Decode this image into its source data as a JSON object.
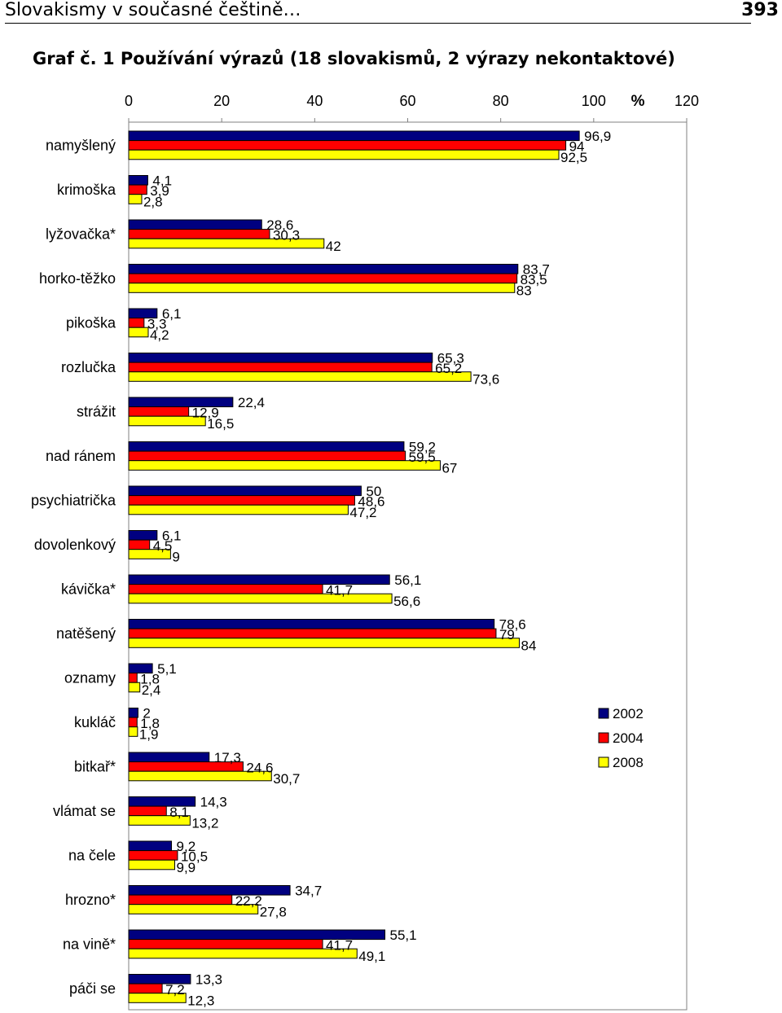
{
  "header": {
    "running_title": "Slovakismy v současné češtině…",
    "page_number": "393"
  },
  "figure": {
    "caption": "Graf č. 1 Používání výrazů (18 slovakismů, 2 výrazy nekontaktové)"
  },
  "chart_data": {
    "type": "bar",
    "orientation": "horizontal",
    "title": "Graf č. 1 Používání výrazů (18 slovakismů, 2 výrazy nekontaktové)",
    "x_axis": {
      "position": "top",
      "ticks": [
        "0",
        "20",
        "40",
        "60",
        "80",
        "100",
        "120"
      ],
      "unit_label": "%",
      "xlim": [
        0,
        120
      ]
    },
    "grid": false,
    "legend_position": "right",
    "categories": [
      "namyšlený",
      "krimoška",
      "lyžovačka*",
      "horko-těžko",
      "pikoška",
      "rozlučka",
      "strážit",
      "nad ránem",
      "psychiatrička",
      "dovolenkový",
      "kávička*",
      "natěšený",
      "oznamy",
      "kukláč",
      "bitkař*",
      "vlámat se",
      "na čele",
      "hrozno*",
      "na vině*",
      "páči se"
    ],
    "series": [
      {
        "name": "2002",
        "color": "#000080",
        "values": [
          96.9,
          4.1,
          28.6,
          83.7,
          6.1,
          65.3,
          22.4,
          59.2,
          50,
          6.1,
          56.1,
          78.6,
          5.1,
          2,
          17.3,
          14.3,
          9.2,
          34.7,
          55.1,
          13.3
        ],
        "labels": [
          "96,9",
          "4,1",
          "28,6",
          "83,7",
          "6,1",
          "65,3",
          "22,4",
          "59,2",
          "50",
          "6,1",
          "56,1",
          "78,6",
          "5,1",
          "2",
          "17,3",
          "14,3",
          "9,2",
          "34,7",
          "55,1",
          "13,3"
        ]
      },
      {
        "name": "2004",
        "color": "#ff0000",
        "values": [
          94,
          3.9,
          30.3,
          83.5,
          3.3,
          65.2,
          12.9,
          59.5,
          48.6,
          4.5,
          41.7,
          79,
          1.8,
          1.8,
          24.6,
          8.1,
          10.5,
          22.2,
          41.7,
          7.2
        ],
        "labels": [
          "94",
          "3,9",
          "30,3",
          "83,5",
          "3,3",
          "65,2",
          "12,9",
          "59,5",
          "48,6",
          "4,5",
          "41,7",
          "79",
          "1,8",
          "1,8",
          "24,6",
          "8,1",
          "10,5",
          "22,2",
          "41,7",
          "7,2"
        ]
      },
      {
        "name": "2008",
        "color": "#ffff00",
        "values": [
          92.5,
          2.8,
          42,
          83,
          4.2,
          73.6,
          16.5,
          67,
          47.2,
          9,
          56.6,
          84,
          2.4,
          1.9,
          30.7,
          13.2,
          9.9,
          27.8,
          49.1,
          12.3
        ],
        "labels": [
          "92,5",
          "2,8",
          "42",
          "83",
          "4,2",
          "73,6",
          "16,5",
          "67",
          "47,2",
          "9",
          "56,6",
          "84",
          "2,4",
          "1,9",
          "30,7",
          "13,2",
          "9,9",
          "27,8",
          "49,1",
          "12,3"
        ]
      }
    ]
  }
}
